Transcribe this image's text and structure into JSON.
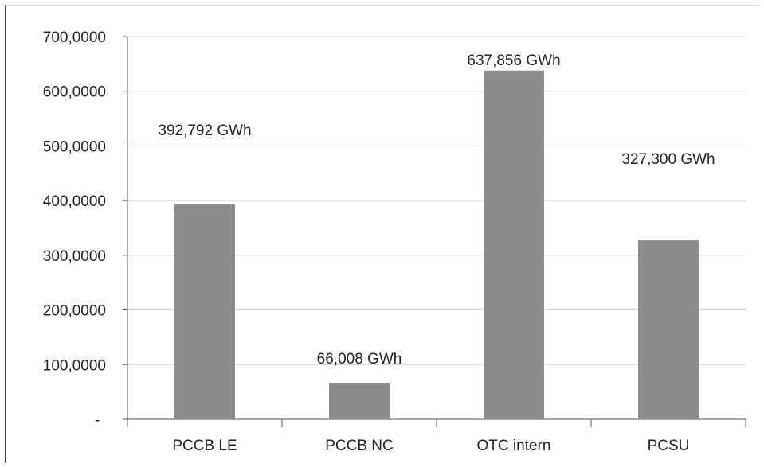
{
  "chart_data": {
    "type": "bar",
    "title": "",
    "xlabel": "",
    "ylabel": "",
    "categories": [
      "PCCB LE",
      "PCCB NC",
      "OTC intern",
      "PCSU"
    ],
    "values": [
      392.792,
      66.008,
      637.856,
      327.3
    ],
    "data_labels": [
      "392,792 GWh",
      "66,008 GWh",
      "637,856 GWh",
      "327,300 GWh"
    ],
    "ylim": [
      0,
      700
    ],
    "yticks": [
      0,
      100,
      200,
      300,
      400,
      500,
      600,
      700
    ],
    "ytick_labels": [
      "-",
      "100,0000",
      "200,0000",
      "300,0000",
      "400,0000",
      "500,0000",
      "600,0000",
      "700,0000"
    ],
    "grid": true,
    "legend": "none",
    "colors": {
      "bar": "#8c8c8c",
      "grid": "#d0d0d0",
      "axis": "#555555"
    }
  }
}
